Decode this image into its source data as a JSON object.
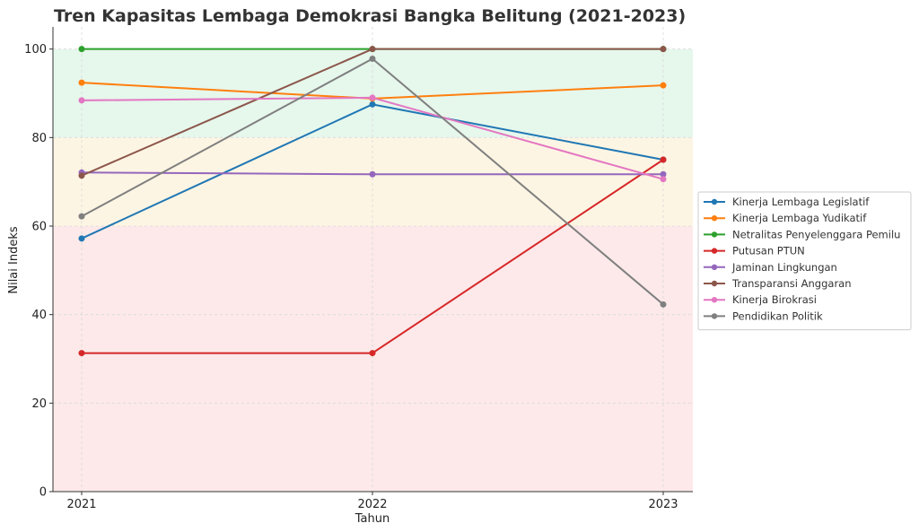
{
  "chart_data": {
    "type": "line",
    "title": "Tren Kapasitas Lembaga Demokrasi Bangka Belitung (2021-2023)",
    "xlabel": "Tahun",
    "ylabel": "Nilai Indeks",
    "categories": [
      "2021",
      "2022",
      "2023"
    ],
    "ylim": [
      0,
      105
    ],
    "yticks": [
      0,
      20,
      40,
      60,
      80,
      100
    ],
    "grid": true,
    "legend_position": "right",
    "bands": [
      {
        "from": 0,
        "to": 60,
        "color": "#fde9e9"
      },
      {
        "from": 60,
        "to": 80,
        "color": "#fdf5e3"
      },
      {
        "from": 80,
        "to": 100,
        "color": "#e6f7ec"
      }
    ],
    "series": [
      {
        "name": "Kinerja Lembaga Legislatif",
        "color": "#1f77b4",
        "values": [
          57.2,
          87.5,
          75.0
        ]
      },
      {
        "name": "Kinerja Lembaga Yudikatif",
        "color": "#ff7f0e",
        "values": [
          92.4,
          88.8,
          91.8
        ]
      },
      {
        "name": "Netralitas Penyelenggara Pemilu",
        "color": "#2ca02c",
        "values": [
          100,
          100,
          100
        ]
      },
      {
        "name": "Putusan PTUN",
        "color": "#d62728",
        "values": [
          31.3,
          31.3,
          75.0
        ]
      },
      {
        "name": "Jaminan Lingkungan",
        "color": "#9467bd",
        "values": [
          72.1,
          71.7,
          71.7
        ]
      },
      {
        "name": "Transparansi Anggaran",
        "color": "#8c564b",
        "values": [
          71.4,
          100,
          100
        ]
      },
      {
        "name": "Kinerja Birokrasi",
        "color": "#e377c2",
        "values": [
          88.4,
          89.0,
          70.6
        ]
      },
      {
        "name": "Pendidikan Politik",
        "color": "#7f7f7f",
        "values": [
          62.2,
          97.8,
          42.3
        ]
      }
    ]
  }
}
